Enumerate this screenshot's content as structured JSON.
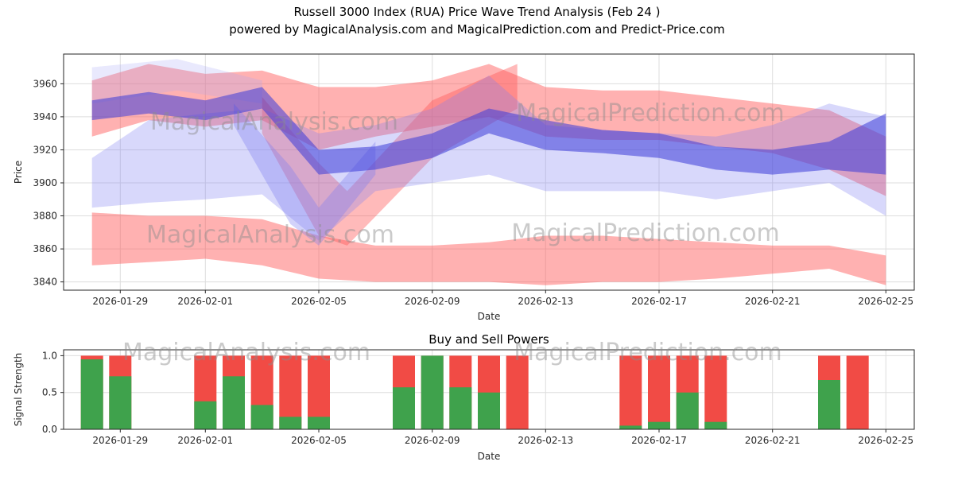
{
  "title": {
    "line1": "Russell 3000 Index (RUA) Price Wave Trend Analysis (Feb 24 )",
    "line2": "powered by MagicalAnalysis.com and MagicalPrediction.com and Predict-Price.com"
  },
  "watermarks": {
    "left_text": "MagicalAnalysis.com",
    "right_text": "MagicalPrediction.com",
    "color": "#8c8c8c",
    "opacity": 0.45
  },
  "colors": {
    "grid": "#dddddd",
    "axis": "#262626",
    "tick_text": "#262626",
    "sell_bar": "#f14b45",
    "buy_bar": "#3fa24c"
  },
  "chart_data": [
    {
      "type": "area",
      "title": "",
      "xlabel": "Date",
      "ylabel": "Price",
      "x_domain": [
        "2026-01-27",
        "2026-02-26"
      ],
      "y_domain": [
        3835,
        3978
      ],
      "x_ticks": [
        "2026-01-29",
        "2026-02-01",
        "2026-02-05",
        "2026-02-09",
        "2026-02-13",
        "2026-02-17",
        "2026-02-21",
        "2026-02-25"
      ],
      "y_ticks": [
        3840,
        3860,
        3880,
        3900,
        3920,
        3940,
        3960
      ],
      "grid": true,
      "bands": [
        {
          "name": "sell-pressure-upper",
          "color": "#ff5252",
          "opacity": 0.45,
          "dates": [
            "2026-01-28",
            "2026-01-30",
            "2026-02-01",
            "2026-02-03",
            "2026-02-05",
            "2026-02-07",
            "2026-02-09",
            "2026-02-11",
            "2026-02-13",
            "2026-02-15",
            "2026-02-17",
            "2026-02-19",
            "2026-02-21",
            "2026-02-23",
            "2026-02-25"
          ],
          "upper": [
            3962,
            3972,
            3966,
            3968,
            3958,
            3958,
            3962,
            3972,
            3958,
            3956,
            3956,
            3952,
            3948,
            3944,
            3928
          ],
          "lower": [
            3928,
            3938,
            3934,
            3938,
            3920,
            3928,
            3934,
            3940,
            3928,
            3926,
            3926,
            3922,
            3918,
            3908,
            3892
          ]
        },
        {
          "name": "sell-pressure-lower",
          "color": "#ff5252",
          "opacity": 0.45,
          "dates": [
            "2026-01-28",
            "2026-01-30",
            "2026-02-01",
            "2026-02-03",
            "2026-02-05",
            "2026-02-07",
            "2026-02-09",
            "2026-02-11",
            "2026-02-13",
            "2026-02-15",
            "2026-02-17",
            "2026-02-19",
            "2026-02-21",
            "2026-02-23",
            "2026-02-25"
          ],
          "upper": [
            3882,
            3880,
            3880,
            3878,
            3868,
            3862,
            3862,
            3864,
            3868,
            3868,
            3866,
            3864,
            3862,
            3862,
            3856
          ],
          "lower": [
            3850,
            3852,
            3854,
            3850,
            3842,
            3840,
            3840,
            3840,
            3838,
            3840,
            3840,
            3842,
            3845,
            3848,
            3838
          ]
        },
        {
          "name": "sell-wave-v",
          "color": "#ff5252",
          "opacity": 0.4,
          "dates": [
            "2026-02-03",
            "2026-02-05",
            "2026-02-06",
            "2026-02-09",
            "2026-02-12"
          ],
          "upper": [
            3952,
            3912,
            3895,
            3950,
            3972
          ],
          "lower": [
            3930,
            3868,
            3862,
            3915,
            3945
          ]
        },
        {
          "name": "buy-zone-pale",
          "color": "#a8a8f7",
          "opacity": 0.25,
          "dates": [
            "2026-01-28",
            "2026-01-31",
            "2026-02-03"
          ],
          "upper": [
            3970,
            3975,
            3962
          ],
          "lower": [
            3948,
            3956,
            3948
          ]
        },
        {
          "name": "buy-wave-wide",
          "color": "#7d7df2",
          "opacity": 0.3,
          "dates": [
            "2026-01-28",
            "2026-01-30",
            "2026-02-01",
            "2026-02-03",
            "2026-02-05",
            "2026-02-07",
            "2026-02-09",
            "2026-02-11",
            "2026-02-13",
            "2026-02-15",
            "2026-02-17",
            "2026-02-19",
            "2026-02-21",
            "2026-02-23",
            "2026-02-25"
          ],
          "upper": [
            3915,
            3938,
            3942,
            3945,
            3930,
            3935,
            3945,
            3965,
            3935,
            3932,
            3930,
            3928,
            3935,
            3948,
            3940
          ],
          "lower": [
            3885,
            3888,
            3890,
            3893,
            3865,
            3895,
            3900,
            3905,
            3895,
            3895,
            3895,
            3890,
            3895,
            3900,
            3880
          ]
        },
        {
          "name": "buy-wave-v",
          "color": "#7d7df2",
          "opacity": 0.35,
          "dates": [
            "2026-02-02",
            "2026-02-04",
            "2026-02-05",
            "2026-02-07"
          ],
          "upper": [
            3948,
            3910,
            3885,
            3925
          ],
          "lower": [
            3935,
            3875,
            3862,
            3905
          ]
        },
        {
          "name": "trend-band-dark",
          "color": "#3d3dd8",
          "opacity": 0.55,
          "dates": [
            "2026-01-28",
            "2026-01-30",
            "2026-02-01",
            "2026-02-03",
            "2026-02-05",
            "2026-02-07",
            "2026-02-09",
            "2026-02-11",
            "2026-02-13",
            "2026-02-15",
            "2026-02-17",
            "2026-02-19",
            "2026-02-21",
            "2026-02-23",
            "2026-02-25"
          ],
          "upper": [
            3950,
            3955,
            3950,
            3958,
            3920,
            3922,
            3930,
            3945,
            3938,
            3932,
            3930,
            3922,
            3920,
            3925,
            3942
          ],
          "lower": [
            3938,
            3942,
            3938,
            3945,
            3905,
            3908,
            3915,
            3930,
            3920,
            3918,
            3915,
            3908,
            3905,
            3908,
            3905
          ]
        }
      ]
    },
    {
      "type": "bar",
      "title": "Buy and Sell Powers",
      "xlabel": "Date",
      "ylabel": "Signal Strength",
      "x_domain": [
        "2026-01-27",
        "2026-02-26"
      ],
      "y_domain": [
        0,
        1.08
      ],
      "x_ticks": [
        "2026-01-29",
        "2026-02-01",
        "2026-02-05",
        "2026-02-09",
        "2026-02-13",
        "2026-02-17",
        "2026-02-21",
        "2026-02-25"
      ],
      "y_ticks": [
        0,
        0.5,
        1
      ],
      "y_tick_labels": [
        "0.0",
        "0.5",
        "1.0"
      ],
      "grid": true,
      "bars": [
        {
          "date": "2026-01-28",
          "sell": 1.0,
          "buy": 0.95
        },
        {
          "date": "2026-01-29",
          "sell": 1.0,
          "buy": 0.72
        },
        {
          "date": "2026-02-01",
          "sell": 1.0,
          "buy": 0.38
        },
        {
          "date": "2026-02-02",
          "sell": 1.0,
          "buy": 0.72
        },
        {
          "date": "2026-02-03",
          "sell": 1.0,
          "buy": 0.33
        },
        {
          "date": "2026-02-04",
          "sell": 1.0,
          "buy": 0.17
        },
        {
          "date": "2026-02-05",
          "sell": 1.0,
          "buy": 0.17
        },
        {
          "date": "2026-02-08",
          "sell": 1.0,
          "buy": 0.57
        },
        {
          "date": "2026-02-09",
          "sell": 1.0,
          "buy": 1.0
        },
        {
          "date": "2026-02-10",
          "sell": 1.0,
          "buy": 0.57
        },
        {
          "date": "2026-02-11",
          "sell": 1.0,
          "buy": 0.5
        },
        {
          "date": "2026-02-12",
          "sell": 1.0,
          "buy": 0.0
        },
        {
          "date": "2026-02-16",
          "sell": 1.0,
          "buy": 0.05
        },
        {
          "date": "2026-02-17",
          "sell": 1.0,
          "buy": 0.1
        },
        {
          "date": "2026-02-18",
          "sell": 1.0,
          "buy": 0.5
        },
        {
          "date": "2026-02-19",
          "sell": 1.0,
          "buy": 0.1
        },
        {
          "date": "2026-02-23",
          "sell": 1.0,
          "buy": 0.67
        },
        {
          "date": "2026-02-24",
          "sell": 1.0,
          "buy": 0.0
        }
      ]
    }
  ]
}
